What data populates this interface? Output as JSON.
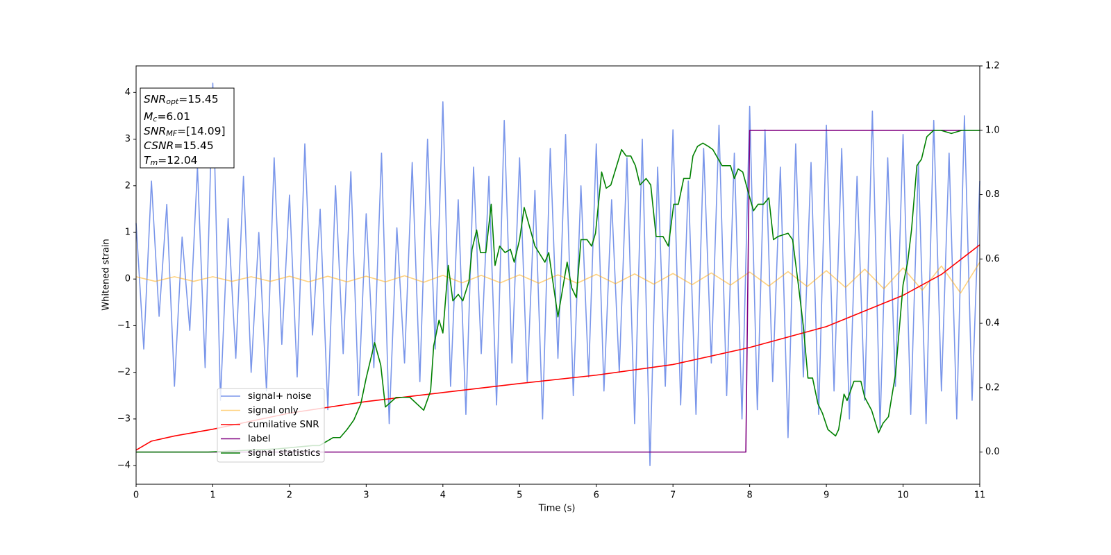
{
  "chart_data": {
    "type": "line",
    "xlabel": "Time (s)",
    "ylabel": "Whitened strain",
    "xlim": [
      0,
      11
    ],
    "xticks": [
      0,
      1,
      2,
      3,
      4,
      5,
      6,
      7,
      8,
      9,
      10,
      11
    ],
    "ylim": [
      -4.4,
      4.57
    ],
    "yticks": [
      {
        "value": -4,
        "label": "−4"
      },
      {
        "value": -3,
        "label": "−3"
      },
      {
        "value": -2,
        "label": "−2"
      },
      {
        "value": -1,
        "label": "−1"
      },
      0,
      1,
      2,
      3,
      4
    ],
    "y2lim": [
      -0.1,
      1.2
    ],
    "y2ticks": [
      {
        "value": 0,
        "label": "0.0"
      },
      0.2,
      0.4,
      0.6,
      0.8,
      {
        "value": 1,
        "label": "1.0"
      },
      1.2
    ],
    "legend_position": "lower left",
    "annotation": [
      {
        "name": "SNR",
        "sub": "opt",
        "text": "=15.45"
      },
      {
        "name": "M",
        "sub": "c",
        "text": "=6.01"
      },
      {
        "name": "SNR",
        "sub": "MF",
        "text": "=[14.09]"
      },
      {
        "name": "CSNR",
        "text": "=15.45"
      },
      {
        "name": "T",
        "sub": "m",
        "text": "=12.04"
      }
    ],
    "series": [
      {
        "name": "signal+ noise",
        "color": "#4169e1",
        "opacity": 0.7,
        "x": [
          0,
          0.1,
          0.2,
          0.3,
          0.4,
          0.5,
          0.6,
          0.7,
          0.8,
          0.9,
          1,
          1.1,
          1.2,
          1.3,
          1.4,
          1.5,
          1.6,
          1.7,
          1.8,
          1.9,
          2,
          2.1,
          2.2,
          2.3,
          2.4,
          2.5,
          2.6,
          2.7,
          2.8,
          2.9,
          3,
          3.1,
          3.2,
          3.3,
          3.4,
          3.5,
          3.6,
          3.7,
          3.8,
          3.9,
          4,
          4.1,
          4.2,
          4.3,
          4.4,
          4.5,
          4.6,
          4.7,
          4.8,
          4.9,
          5,
          5.1,
          5.2,
          5.3,
          5.4,
          5.5,
          5.6,
          5.7,
          5.8,
          5.9,
          6,
          6.1,
          6.2,
          6.3,
          6.4,
          6.5,
          6.6,
          6.7,
          6.8,
          6.9,
          7,
          7.1,
          7.2,
          7.3,
          7.4,
          7.5,
          7.6,
          7.7,
          7.8,
          7.9,
          8,
          8.1,
          8.2,
          8.3,
          8.4,
          8.5,
          8.6,
          8.7,
          8.8,
          8.9,
          9,
          9.1,
          9.2,
          9.3,
          9.4,
          9.5,
          9.6,
          9.7,
          9.8,
          9.9,
          10,
          10.1,
          10.2,
          10.3,
          10.4,
          10.5,
          10.6,
          10.7,
          10.8,
          10.9,
          11
        ],
        "values": [
          1.2,
          -1.5,
          2.1,
          -0.8,
          1.6,
          -2.3,
          0.9,
          -1.1,
          2.4,
          -1.9,
          4.2,
          -2.6,
          1.3,
          -1.7,
          2.2,
          -2.0,
          1.0,
          -2.4,
          2.6,
          -1.4,
          1.8,
          -2.1,
          2.9,
          -1.2,
          1.5,
          -2.8,
          2.0,
          -1.6,
          2.3,
          -2.5,
          1.4,
          -1.9,
          2.7,
          -3.1,
          1.1,
          -1.8,
          2.5,
          -2.2,
          3.0,
          -1.5,
          3.8,
          -2.3,
          1.7,
          -2.9,
          2.4,
          -1.6,
          2.2,
          -2.7,
          3.4,
          -1.8,
          2.6,
          -2.2,
          1.9,
          -3.0,
          2.8,
          -1.7,
          3.1,
          -2.5,
          2.0,
          -2.1,
          2.9,
          -2.4,
          1.7,
          -2.0,
          2.6,
          -3.1,
          3.0,
          -4.0,
          2.4,
          -2.3,
          3.2,
          -2.7,
          2.1,
          -2.9,
          2.8,
          -1.8,
          3.3,
          -2.5,
          2.7,
          -3.0,
          3.7,
          -2.8,
          3.2,
          -2.2,
          2.4,
          -3.4,
          2.9,
          -2.1,
          2.5,
          -2.9,
          3.3,
          -2.4,
          2.8,
          -3.0,
          2.2,
          -2.6,
          3.6,
          -3.2,
          2.6,
          -2.3,
          3.1,
          -2.9,
          2.5,
          -3.1,
          3.4,
          -2.4,
          2.7,
          -3.0,
          3.5,
          -2.6,
          2.1
        ]
      },
      {
        "name": "signal only",
        "color": "#ffa500",
        "opacity": 0.5,
        "x": [
          0,
          0.25,
          0.5,
          0.75,
          1,
          1.25,
          1.5,
          1.75,
          2,
          2.25,
          2.5,
          2.75,
          3,
          3.25,
          3.5,
          3.75,
          4,
          4.25,
          4.5,
          4.75,
          5,
          5.25,
          5.5,
          5.75,
          6,
          6.25,
          6.5,
          6.75,
          7,
          7.25,
          7.5,
          7.75,
          8,
          8.25,
          8.5,
          8.75,
          9,
          9.25,
          9.5,
          9.75,
          10,
          10.25,
          10.5,
          10.75,
          11
        ],
        "values": [
          0.05,
          -0.05,
          0.05,
          -0.05,
          0.05,
          -0.05,
          0.05,
          -0.05,
          0.06,
          -0.06,
          0.06,
          -0.06,
          0.06,
          -0.06,
          0.07,
          -0.07,
          0.08,
          -0.08,
          0.08,
          -0.08,
          0.09,
          -0.09,
          0.09,
          -0.09,
          0.1,
          -0.1,
          0.11,
          -0.11,
          0.12,
          -0.12,
          0.13,
          -0.13,
          0.15,
          -0.15,
          0.16,
          -0.16,
          0.18,
          -0.18,
          0.21,
          -0.21,
          0.24,
          -0.24,
          0.28,
          -0.3,
          0.36
        ]
      },
      {
        "name": "cumilative SNR",
        "color": "#ff0000",
        "opacity": 1,
        "axis": "y2",
        "x": [
          0,
          0.2,
          0.5,
          1,
          2,
          3,
          4,
          5,
          6,
          7,
          8,
          9,
          10,
          10.5,
          11
        ],
        "values": [
          0.006,
          0.034,
          0.05,
          0.071,
          0.121,
          0.157,
          0.185,
          0.213,
          0.239,
          0.272,
          0.325,
          0.39,
          0.487,
          0.552,
          0.644
        ]
      },
      {
        "name": "label",
        "color": "#800080",
        "opacity": 1,
        "axis": "y2",
        "x": [
          0,
          7.95,
          8.0,
          11
        ],
        "values": [
          0,
          0,
          1,
          1
        ]
      },
      {
        "name": "signal statistics",
        "color": "#008000",
        "opacity": 1,
        "axis": "y2",
        "x": [
          0,
          0.94,
          1.85,
          2.3,
          2.39,
          2.57,
          2.66,
          2.75,
          2.84,
          2.93,
          3.0,
          3.11,
          3.19,
          3.25,
          3.39,
          3.48,
          3.57,
          3.75,
          3.84,
          3.88,
          3.95,
          4.0,
          4.07,
          4.13,
          4.2,
          4.26,
          4.34,
          4.38,
          4.44,
          4.49,
          4.56,
          4.63,
          4.68,
          4.74,
          4.81,
          4.88,
          4.93,
          5.0,
          5.06,
          5.2,
          5.33,
          5.38,
          5.5,
          5.62,
          5.68,
          5.74,
          5.8,
          5.88,
          5.94,
          5.99,
          6.07,
          6.13,
          6.19,
          6.33,
          6.39,
          6.45,
          6.51,
          6.57,
          6.65,
          6.71,
          6.78,
          6.87,
          6.94,
          7.01,
          7.07,
          7.14,
          7.22,
          7.26,
          7.32,
          7.39,
          7.46,
          7.52,
          7.64,
          7.75,
          7.8,
          7.85,
          7.91,
          7.99,
          8.05,
          8.11,
          8.18,
          8.25,
          8.31,
          8.37,
          8.5,
          8.56,
          8.64,
          8.7,
          8.76,
          8.82,
          8.89,
          8.95,
          9.02,
          9.12,
          9.16,
          9.23,
          9.27,
          9.36,
          9.45,
          9.5,
          9.59,
          9.68,
          9.74,
          9.81,
          9.9,
          10.0,
          10.06,
          10.11,
          10.18,
          10.24,
          10.31,
          10.4,
          10.49,
          10.63,
          10.77,
          11.0
        ],
        "values": [
          0,
          0,
          0.01,
          0.02,
          0.02,
          0.045,
          0.045,
          0.07,
          0.1,
          0.15,
          0.23,
          0.34,
          0.27,
          0.14,
          0.17,
          0.17,
          0.17,
          0.13,
          0.19,
          0.33,
          0.41,
          0.37,
          0.58,
          0.47,
          0.49,
          0.47,
          0.53,
          0.63,
          0.69,
          0.62,
          0.62,
          0.77,
          0.58,
          0.64,
          0.62,
          0.63,
          0.59,
          0.66,
          0.76,
          0.64,
          0.59,
          0.62,
          0.42,
          0.59,
          0.51,
          0.48,
          0.66,
          0.66,
          0.64,
          0.68,
          0.87,
          0.82,
          0.83,
          0.94,
          0.92,
          0.92,
          0.89,
          0.83,
          0.85,
          0.83,
          0.67,
          0.67,
          0.64,
          0.77,
          0.77,
          0.85,
          0.85,
          0.92,
          0.95,
          0.96,
          0.95,
          0.94,
          0.89,
          0.89,
          0.85,
          0.88,
          0.87,
          0.8,
          0.75,
          0.77,
          0.77,
          0.79,
          0.66,
          0.67,
          0.68,
          0.66,
          0.51,
          0.39,
          0.23,
          0.23,
          0.15,
          0.12,
          0.07,
          0.05,
          0.07,
          0.18,
          0.16,
          0.22,
          0.22,
          0.17,
          0.13,
          0.06,
          0.09,
          0.11,
          0.24,
          0.52,
          0.59,
          0.69,
          0.89,
          0.91,
          0.98,
          1.0,
          1.0,
          0.99,
          1.0,
          1.0
        ]
      }
    ]
  }
}
